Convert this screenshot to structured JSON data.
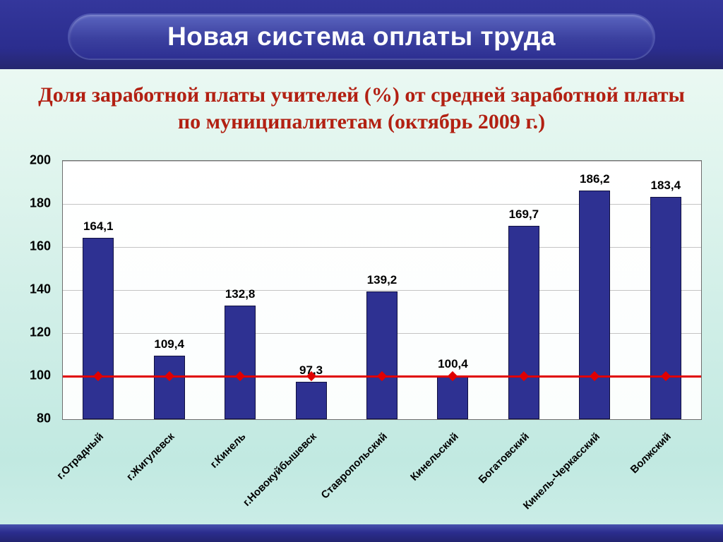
{
  "slide": {
    "title": "Новая система оплаты труда"
  },
  "colors": {
    "banner_blue": "#2b2d8e",
    "pill_blue": "#3b409f",
    "title_text": "#ffffff",
    "chart_title_red": "#b22012",
    "bar_navy": "#2e3192",
    "reference_red": "#e00000",
    "background_mint": "#d2efe8"
  },
  "chart_data": {
    "type": "bar",
    "title": "Доля заработной платы учителей (%) от средней заработной платы по муниципалитетам (октябрь 2009 г.)",
    "categories": [
      "г.Отрадный",
      "г.Жигулевск",
      "г.Кинель",
      "г.Новокуйбышевск",
      "Ставропольский",
      "Кинельский",
      "Богатовский",
      "Кинель-Черкасский",
      "Волжский"
    ],
    "values": [
      164.1,
      109.4,
      132.8,
      97.3,
      139.2,
      100.4,
      169.7,
      186.2,
      183.4
    ],
    "value_labels": [
      "164,1",
      "109,4",
      "132,8",
      "97,3",
      "139,2",
      "100,4",
      "169,7",
      "186,2",
      "183,4"
    ],
    "xlabel": "",
    "ylabel": "",
    "ylim": [
      80,
      200
    ],
    "yticks": [
      80,
      100,
      120,
      140,
      160,
      180,
      200
    ],
    "grid": true,
    "legend": "none",
    "bar_color": "#2e3192",
    "reference_line": {
      "value": 100,
      "color": "#e00000",
      "marker": "diamond"
    }
  }
}
